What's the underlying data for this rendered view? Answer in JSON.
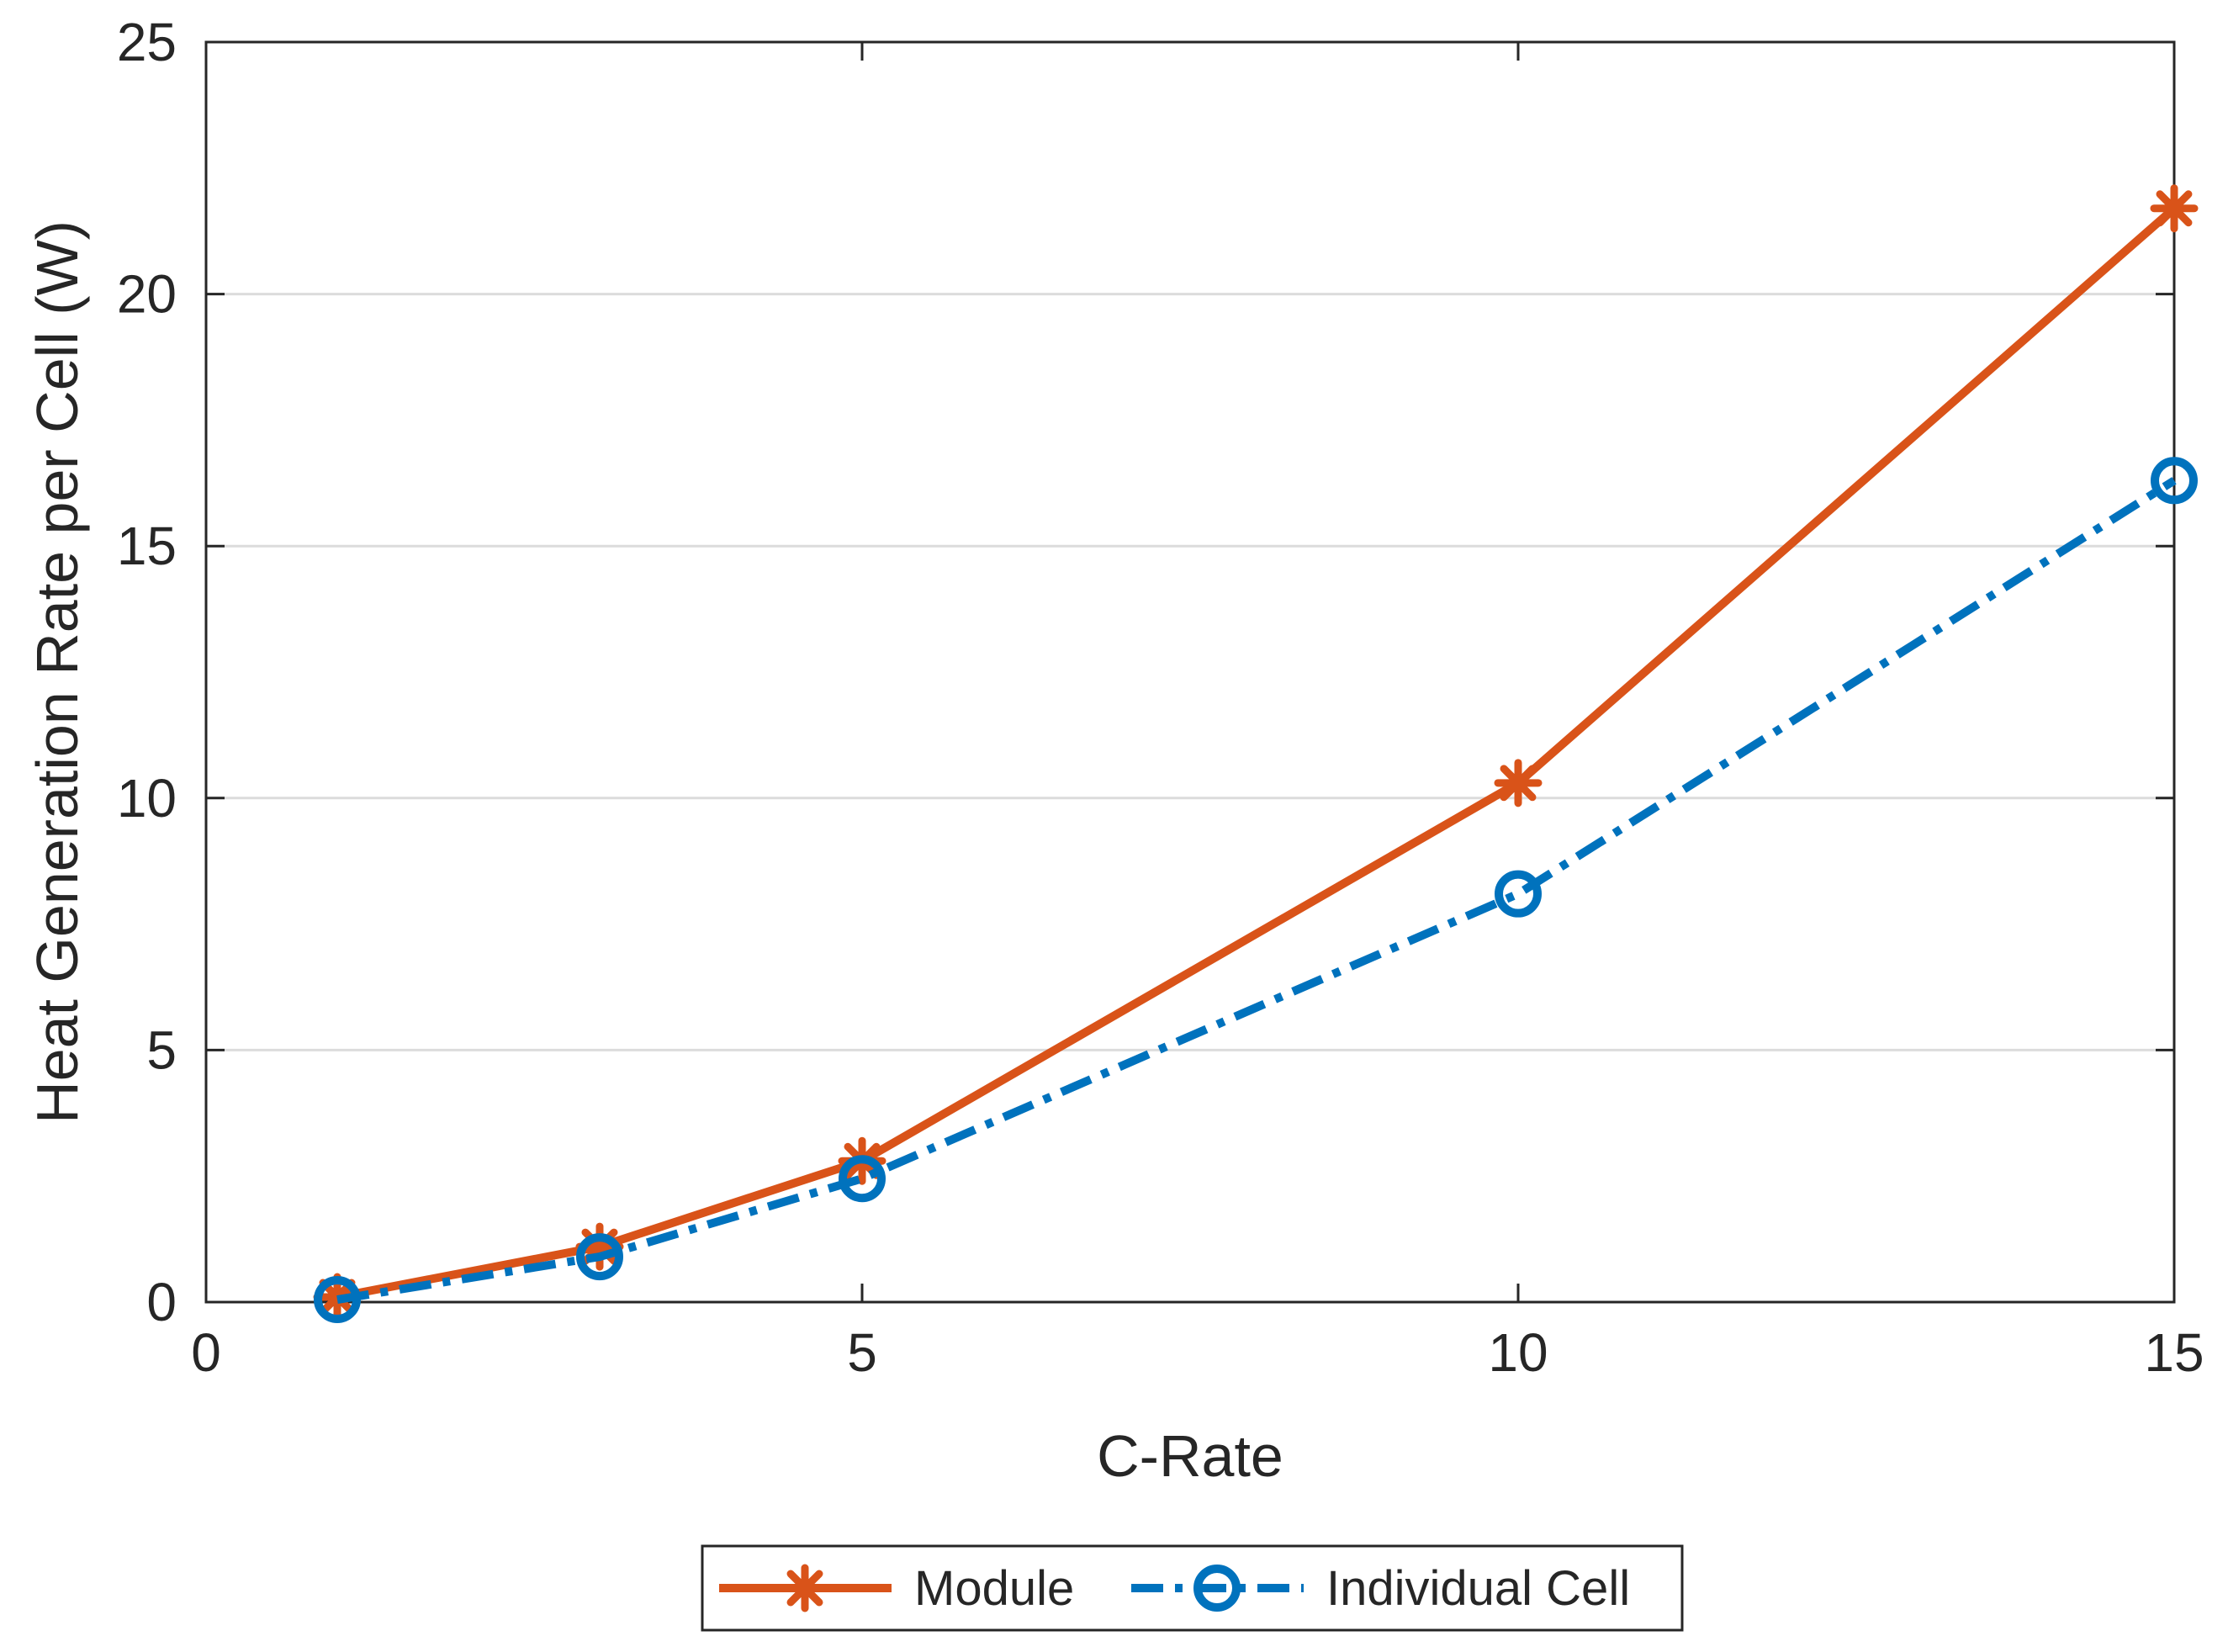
{
  "chart_data": {
    "type": "line",
    "title": "",
    "xlabel": "C-Rate",
    "ylabel": "Heat Generation Rate per Cell (W)",
    "xlim": [
      0,
      15
    ],
    "ylim": [
      0,
      25
    ],
    "xticks": [
      0,
      5,
      10,
      15
    ],
    "yticks": [
      0,
      5,
      10,
      15,
      20,
      25
    ],
    "grid": "horizontal",
    "legend_position": "bottom-center",
    "series": [
      {
        "name": "Module",
        "color": "#d95319",
        "line_style": "solid",
        "marker": "asterisk",
        "x": [
          1,
          3,
          5,
          10,
          15
        ],
        "y": [
          0.1,
          1.1,
          2.8,
          10.3,
          21.7
        ]
      },
      {
        "name": "Individual Cell",
        "color": "#0072bd",
        "line_style": "dash-dot",
        "marker": "circle",
        "x": [
          1,
          3,
          5,
          10,
          15
        ],
        "y": [
          0.05,
          0.9,
          2.45,
          8.1,
          16.3
        ]
      }
    ]
  }
}
